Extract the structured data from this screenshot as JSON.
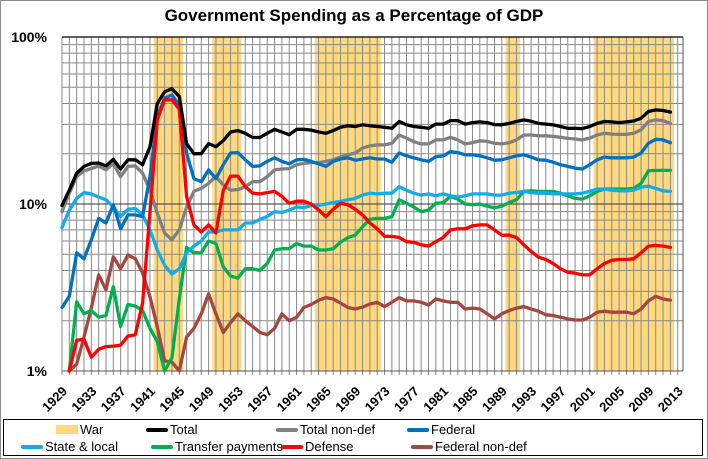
{
  "chart_data": {
    "type": "line",
    "title": "Government Spending as a Percentage of GDP",
    "xlabel": "",
    "ylabel": "",
    "y_scale": "log",
    "ylim": [
      1,
      100
    ],
    "xlim": [
      1929,
      2013
    ],
    "yticks": [
      "1%",
      "10%",
      "100%"
    ],
    "xticks": [
      1929,
      1933,
      1937,
      1941,
      1945,
      1949,
      1953,
      1957,
      1961,
      1965,
      1969,
      1973,
      1977,
      1981,
      1985,
      1989,
      1993,
      1997,
      2001,
      2005,
      2009,
      2013
    ],
    "grid": true,
    "legend_placement": "bottom",
    "x_start": 1929,
    "x_end": 2012,
    "war_periods": {
      "name": "War",
      "color": "#FFD97F",
      "ranges": [
        [
          1942,
          1945
        ],
        [
          1950,
          1953
        ],
        [
          1964,
          1972
        ],
        [
          1990,
          1991
        ],
        [
          2002,
          2012
        ]
      ]
    },
    "series": [
      {
        "name": "Total",
        "color": "#000000",
        "values": [
          9.8,
          12.1,
          15.3,
          16.8,
          17.5,
          17.6,
          16.9,
          18.5,
          16.2,
          18.4,
          18.4,
          17.2,
          22,
          40,
          47,
          49,
          44,
          23,
          20,
          20,
          23,
          22,
          24,
          27,
          27.5,
          26.5,
          25,
          25,
          26.5,
          28,
          27,
          26,
          28,
          28,
          27.7,
          27,
          26.5,
          27.5,
          28.8,
          29.4,
          29.1,
          29.8,
          29.4,
          29.1,
          28.8,
          28.4,
          31.2,
          29.8,
          29.1,
          28.8,
          28.4,
          30.1,
          30.1,
          31.6,
          31.6,
          30.1,
          30.7,
          31.0,
          30.7,
          29.9,
          29.8,
          30.4,
          31.2,
          31.9,
          31.3,
          30.4,
          30.1,
          29.8,
          29.1,
          28.4,
          28.4,
          28.3,
          29.1,
          30.4,
          31.2,
          31.0,
          30.7,
          31.0,
          31.4,
          32.6,
          35.8,
          36.6,
          36.3,
          35.5
        ]
      },
      {
        "name": "Total non-def",
        "color": "#808080",
        "values": [
          9.0,
          11.6,
          14.6,
          15.8,
          16.3,
          16.9,
          16.0,
          17.5,
          14.6,
          16.8,
          16.9,
          15.3,
          12.1,
          8.8,
          6.7,
          6.1,
          7.0,
          9.6,
          11.9,
          12.4,
          13.3,
          14.6,
          13.0,
          12.1,
          12.2,
          12.7,
          13.6,
          13.6,
          14.6,
          16.0,
          16.2,
          16.3,
          17.2,
          17.5,
          17.7,
          17.7,
          18.0,
          18.4,
          19.1,
          19.7,
          20.2,
          21.6,
          22.3,
          22.6,
          22.6,
          23.1,
          25.9,
          24.8,
          23.6,
          22.9,
          22.9,
          24.2,
          24.2,
          25.1,
          24.2,
          22.9,
          23.3,
          23.9,
          23.7,
          23.1,
          22.9,
          23.3,
          24.2,
          25.9,
          25.9,
          25.6,
          25.6,
          25.4,
          25.1,
          24.7,
          24.5,
          24.2,
          24.8,
          25.9,
          26.5,
          26.2,
          26.1,
          26.1,
          26.5,
          27.8,
          31.2,
          31.9,
          31.6,
          30.4
        ]
      },
      {
        "name": "Federal",
        "color": "#0070C0",
        "values": [
          2.4,
          2.8,
          5.1,
          4.7,
          6.1,
          8.2,
          7.7,
          9.9,
          7.1,
          8.6,
          8.6,
          8.4,
          14.6,
          33.4,
          43,
          45,
          39,
          20.2,
          14.2,
          13.6,
          16,
          14.2,
          17.2,
          20.2,
          20.3,
          18.4,
          16.8,
          16.9,
          18,
          18.9,
          18,
          17.4,
          18.4,
          18.5,
          18,
          17.4,
          16.8,
          18,
          18.6,
          18.9,
          18.3,
          18.6,
          18.9,
          18.6,
          18.6,
          17.8,
          20.2,
          19.4,
          18.9,
          18.4,
          18.0,
          19.2,
          19.4,
          20.6,
          20.3,
          19.7,
          19.7,
          19.4,
          18.9,
          18.3,
          18.4,
          18.9,
          19.4,
          19.7,
          19.1,
          18.4,
          18.3,
          17.8,
          17.2,
          16.8,
          16.4,
          16.2,
          17.2,
          18.4,
          19.1,
          18.9,
          18.9,
          18.9,
          19.1,
          20.2,
          23.1,
          24.4,
          24.2,
          23.3
        ]
      },
      {
        "name": "State & local",
        "color": "#12ADE8",
        "values": [
          7.2,
          9.2,
          10.8,
          11.7,
          11.5,
          11.0,
          10.6,
          9.6,
          8.4,
          9.3,
          9.4,
          8.6,
          7.0,
          5.3,
          4.3,
          3.8,
          4.1,
          5.1,
          5.6,
          6.0,
          6.8,
          6.8,
          7.0,
          7.0,
          7.0,
          7.7,
          7.7,
          8.1,
          8.4,
          9.0,
          8.9,
          9.2,
          9.6,
          9.5,
          9.8,
          9.8,
          10.0,
          10.2,
          10.4,
          10.6,
          10.8,
          11.3,
          11.6,
          11.5,
          11.6,
          11.6,
          12.7,
          12.1,
          11.6,
          11.3,
          11.5,
          11.2,
          11.5,
          11.2,
          11.0,
          11.2,
          11.5,
          11.5,
          11.5,
          11.3,
          11.3,
          11.6,
          11.7,
          11.9,
          11.7,
          11.6,
          11.6,
          11.5,
          11.5,
          11.5,
          11.5,
          11.6,
          11.9,
          12.3,
          12.3,
          12.1,
          12.0,
          12.0,
          12.1,
          12.6,
          12.8,
          12.4,
          12.0,
          11.9
        ]
      },
      {
        "name": "Transfer payments",
        "color": "#00B050",
        "values": [
          null,
          1.0,
          2.6,
          2.2,
          2.3,
          2.1,
          2.15,
          3.2,
          1.85,
          2.5,
          2.45,
          2.3,
          1.8,
          1.5,
          1.0,
          1.2,
          2.7,
          5.5,
          5.1,
          5.1,
          6.0,
          5.8,
          4.2,
          3.7,
          3.6,
          4.1,
          4.1,
          4.0,
          4.4,
          5.3,
          5.4,
          5.4,
          5.8,
          5.6,
          5.6,
          5.3,
          5.3,
          5.4,
          5.9,
          6.3,
          6.5,
          7.3,
          8.1,
          8.2,
          8.2,
          8.4,
          10.6,
          10.1,
          9.6,
          9.0,
          9.2,
          10.1,
          10.2,
          11.1,
          10.7,
          10.0,
          9.9,
          10.0,
          9.7,
          9.5,
          9.7,
          10.2,
          10.6,
          11.9,
          12.0,
          11.9,
          11.9,
          11.9,
          11.6,
          11.2,
          10.8,
          10.7,
          11.2,
          11.9,
          12.3,
          12.3,
          12.3,
          12.3,
          12.4,
          13.3,
          15.8,
          15.9,
          15.9,
          15.9
        ]
      },
      {
        "name": "Defense",
        "color": "#FF0000",
        "values": [
          null,
          1.0,
          1.53,
          1.55,
          1.21,
          1.35,
          1.4,
          1.41,
          1.43,
          1.62,
          1.65,
          2.55,
          9.0,
          32,
          42,
          42,
          37,
          11.1,
          7.5,
          6.8,
          7.5,
          6.7,
          12.1,
          14.7,
          14.7,
          12.7,
          11.6,
          11.5,
          11.7,
          11.9,
          11.1,
          10.1,
          10.4,
          10.4,
          10.0,
          9.2,
          8.4,
          9.3,
          10.1,
          9.9,
          9.3,
          8.6,
          7.7,
          7.1,
          6.4,
          6.4,
          6.3,
          5.95,
          5.9,
          5.7,
          5.6,
          5.95,
          6.3,
          7.0,
          7.1,
          7.1,
          7.4,
          7.5,
          7.5,
          7.0,
          6.5,
          6.5,
          6.3,
          5.7,
          5.2,
          4.8,
          4.65,
          4.4,
          4.1,
          3.9,
          3.85,
          3.76,
          3.76,
          4.1,
          4.4,
          4.6,
          4.65,
          4.65,
          4.7,
          5.1,
          5.6,
          5.65,
          5.6,
          5.5
        ]
      },
      {
        "name": "Federal non-def",
        "color": "#A5463F",
        "values": [
          null,
          1.0,
          1.1,
          1.6,
          2.38,
          3.76,
          3.06,
          4.83,
          4.1,
          4.95,
          4.7,
          3.86,
          2.78,
          1.84,
          1.15,
          1.13,
          1.0,
          1.6,
          1.8,
          2.2,
          2.9,
          2.2,
          1.7,
          1.95,
          2.2,
          2.0,
          1.85,
          1.7,
          1.65,
          1.8,
          2.2,
          2.0,
          2.1,
          2.4,
          2.5,
          2.65,
          2.75,
          2.7,
          2.55,
          2.4,
          2.35,
          2.41,
          2.52,
          2.58,
          2.43,
          2.58,
          2.75,
          2.63,
          2.63,
          2.58,
          2.48,
          2.7,
          2.63,
          2.58,
          2.58,
          2.35,
          2.38,
          2.35,
          2.2,
          2.05,
          2.2,
          2.3,
          2.38,
          2.43,
          2.35,
          2.28,
          2.17,
          2.15,
          2.1,
          2.05,
          2.02,
          2.02,
          2.1,
          2.25,
          2.28,
          2.25,
          2.25,
          2.25,
          2.2,
          2.35,
          2.63,
          2.8,
          2.7,
          2.65
        ]
      }
    ]
  }
}
